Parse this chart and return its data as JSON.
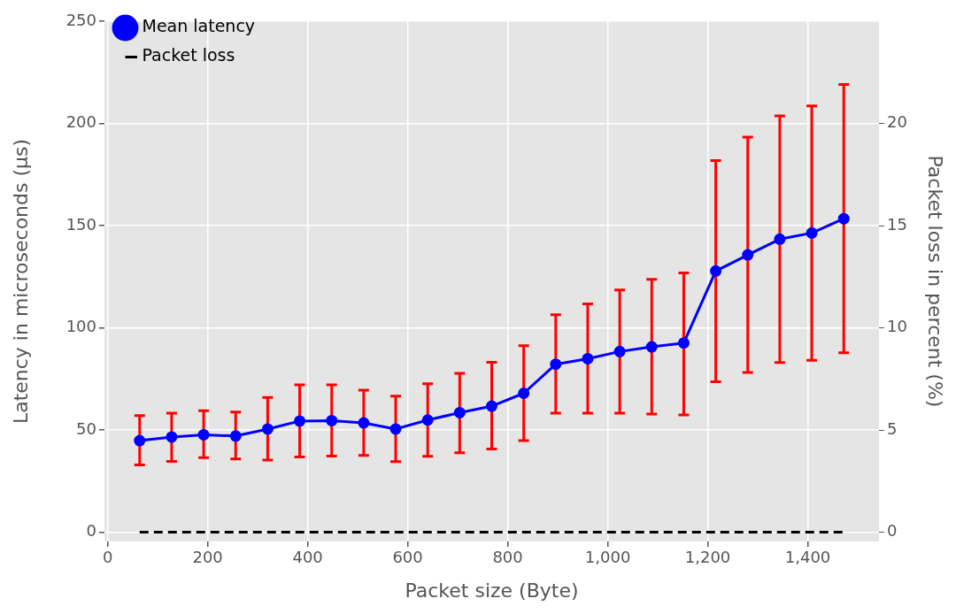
{
  "chart_data": {
    "type": "line",
    "xlabel": "Packet size (Byte)",
    "ylabel": "Latency in microseconds (µs)",
    "y2label": "Packet loss in percent (%)",
    "x": [
      64,
      128,
      192,
      256,
      320,
      384,
      448,
      512,
      576,
      640,
      704,
      768,
      832,
      896,
      960,
      1024,
      1088,
      1152,
      1216,
      1280,
      1344,
      1408,
      1472
    ],
    "xlim": [
      -6.4,
      1542.4
    ],
    "xticks": [
      0,
      200,
      400,
      600,
      800,
      {
        "value": 1000,
        "label": "1,000"
      },
      {
        "value": 1200,
        "label": "1,200"
      },
      {
        "value": 1400,
        "label": "1,400"
      }
    ],
    "ylim": [
      -4.5,
      250
    ],
    "yticks": [
      0,
      50,
      100,
      150,
      200,
      250
    ],
    "y2lim": [
      -0.45,
      25
    ],
    "y2ticks": [
      0,
      5,
      10,
      15,
      20
    ],
    "grid": true,
    "legend": "top left",
    "series": [
      {
        "name": "Mean latency",
        "color": "#0000ff",
        "marker": "circle",
        "line_style": "solid",
        "values": [
          44.8,
          46.6,
          47.7,
          47.1,
          50.5,
          54.4,
          54.6,
          53.5,
          50.5,
          54.9,
          58.5,
          61.7,
          68.0,
          82.2,
          84.9,
          88.4,
          90.7,
          92.6,
          127.8,
          135.7,
          143.4,
          146.4,
          153.4
        ],
        "errors": [
          [
            32.9,
            57.1
          ],
          [
            34.7,
            58.3
          ],
          [
            36.5,
            59.5
          ],
          [
            35.9,
            58.8
          ],
          [
            35.3,
            65.9
          ],
          [
            36.8,
            72.1
          ],
          [
            37.3,
            72.1
          ],
          [
            37.6,
            69.5
          ],
          [
            34.6,
            66.6
          ],
          [
            37.2,
            72.7
          ],
          [
            38.9,
            77.7
          ],
          [
            40.7,
            83.2
          ],
          [
            44.8,
            91.3
          ],
          [
            58.3,
            106.4
          ],
          [
            58.3,
            111.7
          ],
          [
            58.3,
            118.5
          ],
          [
            57.8,
            123.7
          ],
          [
            57.4,
            126.9
          ],
          [
            73.6,
            181.8
          ],
          [
            78.2,
            193.3
          ],
          [
            83.0,
            203.7
          ],
          [
            84.1,
            208.6
          ],
          [
            87.8,
            219.1
          ]
        ]
      },
      {
        "name": "Packet loss",
        "color": "#000000",
        "axis": "y2",
        "marker": "none",
        "line_style": "dashed",
        "values": [
          0,
          0,
          0,
          0,
          0,
          0,
          0,
          0,
          0,
          0,
          0,
          0,
          0,
          0,
          0,
          0,
          0,
          0,
          0,
          0,
          0,
          0,
          0
        ]
      }
    ]
  }
}
